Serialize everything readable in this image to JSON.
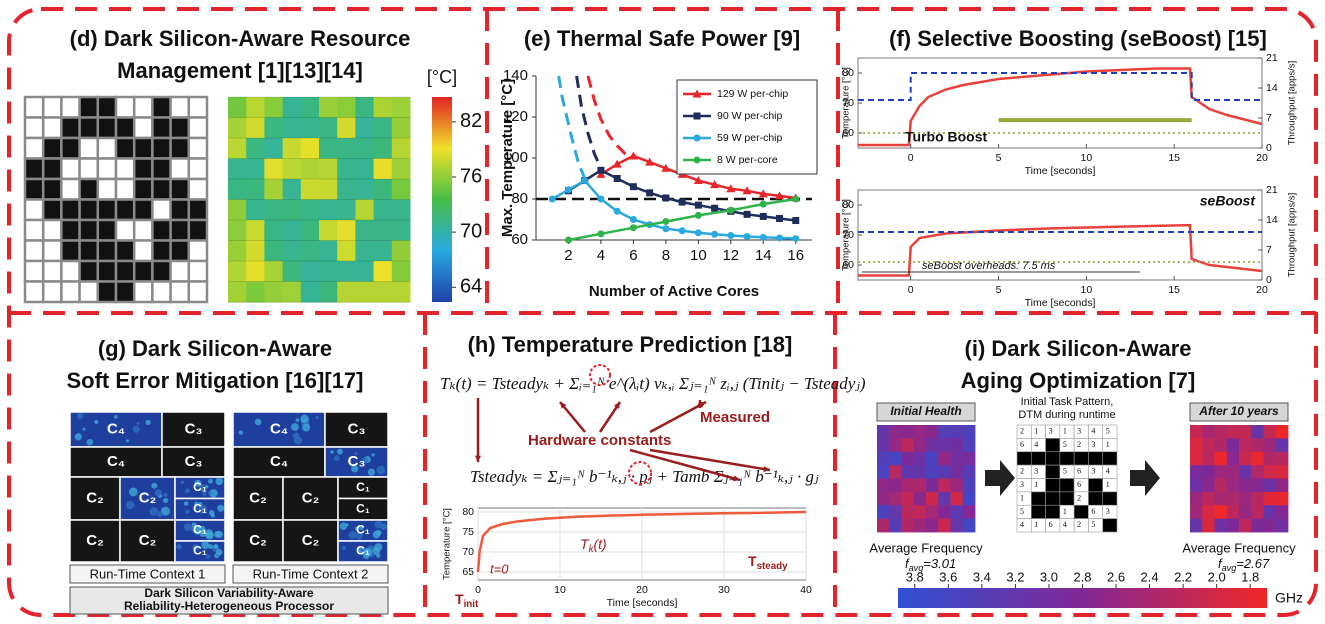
{
  "panels": {
    "d": {
      "title": [
        "(d) Dark Silicon-Aware Resource",
        "Management [1][13][14]"
      ],
      "colorbar": {
        "label": "[°C]",
        "lim": [
          62.4,
          84.7
        ],
        "ticks": [
          82,
          76,
          70,
          64
        ]
      }
    },
    "f": {
      "title": "(f) Selective Boosting (seBoost) [15]"
    },
    "g": {
      "title": [
        "(g) Dark Silicon-Aware",
        "Soft Error Mitigation [16][17]"
      ],
      "contexts": [
        "Run-Time Context 1",
        "Run-Time Context 2"
      ],
      "cores": {
        "c1": "C₁",
        "c2": "C₂",
        "c3": "C₃",
        "c4": "C₄"
      },
      "caption": [
        "Dark Silicon Variability-Aware",
        "Reliability-Heterogeneous Processor"
      ]
    },
    "h": {
      "title": "(h) Temperature Prediction [18]",
      "equations": [
        "Tₖ(t) = Tsteadyₖ + Σᵢ₌₁ᴺ e^(λᵢt) vₖ,ᵢ Σⱼ₌₁ᴺ zᵢ,ⱼ (Tinitⱼ − Tsteadyⱼ)",
        "Tsteadyₖ = Σⱼ₌₁ᴺ b⁻¹ₖ,ⱼ · pⱼ + Tamb Σⱼ₌₁ᴺ b⁻¹ₖ,ⱼ · gⱼ"
      ],
      "hardware": "Hardware constants",
      "measured": "Measured"
    },
    "i": {
      "title": [
        "(i) Dark Silicon-Aware",
        "Aging Optimization [7]"
      ],
      "initial": "Initial Health",
      "after": "After 10 years",
      "task_pattern": [
        "Initial Task Pattern,",
        "DTM during runtime"
      ],
      "task_rows": [
        [
          "2",
          "1",
          "3",
          "1",
          "3",
          "4",
          "5"
        ],
        [
          "6",
          "4",
          null,
          "5",
          "2",
          "3",
          "1"
        ],
        [
          null,
          null,
          null,
          null,
          null,
          null,
          null
        ],
        [
          "2",
          "3",
          null,
          "5",
          "6",
          "3",
          "4"
        ],
        [
          "3",
          "1",
          null,
          null,
          "6",
          null,
          "1"
        ],
        [
          "1",
          null,
          null,
          null,
          "2",
          null,
          null
        ],
        [
          "5",
          null,
          null,
          "1",
          null,
          "6",
          "3"
        ],
        [
          "4",
          "1",
          "6",
          "4",
          "2",
          "5",
          null
        ]
      ],
      "avg_label": "Average Frequency",
      "f_avg_initial": [
        "f",
        "avg",
        "=3.01"
      ],
      "f_avg_after": [
        "f",
        "avg",
        "=2.67"
      ],
      "colorbar": {
        "unit": "GHz",
        "lim": [
          3.9,
          1.7
        ],
        "ticks": [
          3.8,
          3.6,
          3.4,
          3.2,
          {
            "value": 3.0,
            "label": "3.0"
          },
          2.8,
          2.6,
          2.4,
          2.2,
          {
            "value": 2.0,
            "label": "2.0"
          },
          1.8
        ]
      }
    }
  },
  "chart_data": [
    {
      "type": "line",
      "title": "(e) Thermal Safe Power [9]",
      "x_label": "Number of Active Cores",
      "y_label": "Max. Temperature [°C]",
      "xlim": [
        0,
        17
      ],
      "ylim": [
        60,
        140
      ],
      "xticks": [
        2,
        4,
        6,
        8,
        10,
        12,
        14,
        16
      ],
      "yticks": [
        60,
        80,
        100,
        120,
        140
      ],
      "reference_line": 80,
      "legend": "upper right",
      "series": [
        {
          "name": "129 W per-chip",
          "color": "#e8262a",
          "marker": "triangle",
          "x": [
            4,
            5,
            6,
            7,
            8,
            9,
            10,
            11,
            12,
            13,
            14,
            15,
            16
          ],
          "values": [
            92,
            97,
            101,
            98,
            95,
            92,
            89,
            87,
            85,
            84,
            82.5,
            81.5,
            80.5
          ],
          "dashed_x": [
            3.2,
            3.6,
            4,
            4.5,
            5,
            5.5,
            6
          ],
          "dashed_values": [
            140,
            128,
            119,
            111,
            106,
            102,
            101
          ]
        },
        {
          "name": "90 W per-chip",
          "color": "#1f2d5a",
          "marker": "square",
          "x": [
            2,
            3,
            4,
            5,
            6,
            7,
            8,
            9,
            10,
            11,
            12,
            13,
            14,
            15,
            16
          ],
          "values": [
            84,
            89,
            94,
            90,
            86,
            83,
            80.5,
            78.5,
            77,
            75.5,
            74,
            72.5,
            71.5,
            70.5,
            69.5
          ],
          "dashed_x": [
            2.5,
            2.8,
            3.2,
            3.6,
            4
          ],
          "dashed_values": [
            140,
            125,
            112,
            102,
            95
          ]
        },
        {
          "name": "59 W per-chip",
          "color": "#29a9e0",
          "marker": "circle",
          "x": [
            1,
            2,
            3,
            4,
            5,
            6,
            7,
            8,
            9,
            10,
            11,
            12,
            13,
            14,
            15,
            16
          ],
          "values": [
            80,
            84.5,
            89,
            80,
            74,
            70,
            67.5,
            65.5,
            64.5,
            63.5,
            62.8,
            62.2,
            61.7,
            61.3,
            61,
            60.7
          ],
          "dashed_x": [
            1.4,
            1.6,
            1.9,
            2.2,
            2.6,
            3
          ],
          "dashed_values": [
            140,
            130,
            120,
            110,
            98,
            90
          ]
        },
        {
          "name": "8 W per-core",
          "color": "#2db34a",
          "marker": "circle",
          "x": [
            2,
            4,
            6,
            8,
            10,
            12,
            14,
            16
          ],
          "values": [
            60,
            63,
            66,
            69,
            72,
            74.5,
            77.5,
            80
          ]
        }
      ]
    },
    {
      "type": "line",
      "x_label": "Time [seconds]",
      "y_label": "Temperature [°C]",
      "y2_label": "Throughput [apps/s]",
      "annotation": "Turbo Boost",
      "xlim": [
        -3,
        20
      ],
      "ylim": [
        55,
        85
      ],
      "y2lim": [
        0,
        21
      ],
      "xticks": [
        0,
        5,
        10,
        15,
        20
      ],
      "yticks": [
        60,
        70,
        80
      ],
      "y2ticks": [
        0,
        7,
        14,
        21
      ],
      "series": [
        {
          "color": "#e8413c",
          "style": "solid",
          "x": [
            -3,
            -0.1,
            0,
            0.5,
            1,
            2,
            3,
            5,
            8,
            10,
            12,
            14,
            15.9,
            16,
            17,
            18,
            20
          ],
          "values": [
            56,
            56,
            64,
            69,
            72,
            74.5,
            76,
            78,
            79.5,
            80.5,
            81,
            81.5,
            81.5,
            72,
            68,
            66,
            63
          ]
        },
        {
          "color": "#1f3fbf",
          "style": "dashed",
          "axis": "y2",
          "x": [
            -3,
            0,
            0,
            16,
            16,
            20
          ],
          "values": [
            11.2,
            11.2,
            17.5,
            17.5,
            11.2,
            11.2
          ]
        },
        {
          "color": "#8a9a2a",
          "style": "dotted",
          "axis": "y2",
          "x": [
            -3,
            20
          ],
          "values": [
            3.5,
            3.5
          ]
        },
        {
          "color": "#9aa83a",
          "style": "band",
          "axis": "y2",
          "x": [
            5,
            16
          ],
          "values": [
            6.5,
            6.5
          ]
        }
      ]
    },
    {
      "type": "line",
      "x_label": "Time [seconds]",
      "y_label": "Temperature [°C]",
      "y2_label": "Throughput [apps/s]",
      "annotation": "seBoost",
      "note": "seBoost overheads: 7.5 ms",
      "xlim": [
        -3,
        20
      ],
      "ylim": [
        55,
        85
      ],
      "y2lim": [
        0,
        21
      ],
      "xticks": [
        0,
        5,
        10,
        15,
        20
      ],
      "yticks": [
        60,
        70,
        80
      ],
      "y2ticks": [
        0,
        7,
        14,
        21
      ],
      "series": [
        {
          "color": "#e8413c",
          "style": "solid",
          "x": [
            -3,
            -0.1,
            0,
            0.5,
            2,
            5,
            8,
            12,
            15.9,
            16,
            17,
            20
          ],
          "values": [
            56.5,
            56.5,
            66,
            69,
            70.5,
            71.5,
            72.2,
            72.8,
            73.3,
            62,
            60,
            58
          ]
        },
        {
          "color": "#1f3fbf",
          "style": "dashed",
          "axis": "y2",
          "x": [
            -3,
            20
          ],
          "values": [
            11.2,
            11.2
          ]
        },
        {
          "color": "#8a9a2a",
          "style": "dotted",
          "axis": "y2",
          "x": [
            -3,
            20
          ],
          "values": [
            4.2,
            4.2
          ]
        }
      ]
    },
    {
      "type": "line",
      "x_label": "Time [seconds]",
      "y_label": "Temperature [°C]",
      "grid": true,
      "color": "#ee5a3a",
      "xlim": [
        0,
        40
      ],
      "ylim": [
        63,
        81
      ],
      "xticks": [
        0,
        10,
        20,
        30,
        40
      ],
      "yticks": [
        65,
        70,
        75,
        80
      ],
      "x": [
        0,
        0.2,
        0.6,
        1.5,
        3,
        5,
        8,
        12,
        16,
        20,
        25,
        30,
        35,
        40
      ],
      "values": [
        65,
        70,
        74,
        76,
        77,
        77.7,
        78.3,
        78.8,
        79.1,
        79.3,
        79.5,
        79.7,
        79.8,
        80
      ],
      "annotations": {
        "t0": "t=0",
        "tk": [
          "T",
          "k",
          "(t)"
        ],
        "steady": [
          "T",
          "steady"
        ],
        "init": [
          "T",
          "init"
        ]
      }
    }
  ]
}
